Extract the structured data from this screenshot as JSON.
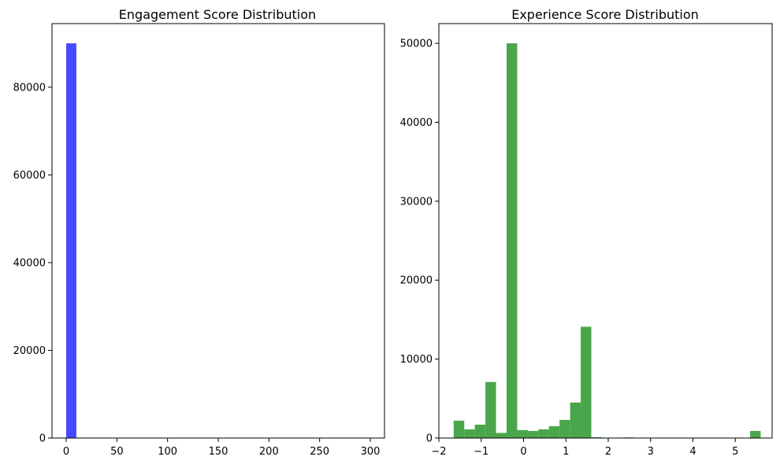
{
  "chart_data": [
    {
      "type": "bar",
      "subtype": "histogram",
      "title": "Engagement Score Distribution",
      "xlabel": "",
      "ylabel": "",
      "xlim": [
        -14,
        314
      ],
      "ylim": [
        0,
        94500
      ],
      "xticks": [
        0,
        50,
        100,
        150,
        200,
        250,
        300
      ],
      "xtick_labels": [
        "0",
        "50",
        "100",
        "150",
        "200",
        "250",
        "300"
      ],
      "yticks": [
        0,
        20000,
        40000,
        60000,
        80000
      ],
      "ytick_labels": [
        "0",
        "20000",
        "40000",
        "60000",
        "80000"
      ],
      "color": "#4848ff",
      "grid": false,
      "bins": [
        {
          "x0": 0,
          "x1": 10,
          "count": 90000
        }
      ]
    },
    {
      "type": "bar",
      "subtype": "histogram",
      "title": "Experience Score Distribution",
      "xlabel": "",
      "ylabel": "",
      "xlim": [
        -2.0,
        5.87
      ],
      "ylim": [
        0,
        52500
      ],
      "xticks": [
        -2,
        -1,
        0,
        1,
        2,
        3,
        4,
        5
      ],
      "xtick_labels": [
        "−2",
        "−1",
        "0",
        "1",
        "2",
        "3",
        "4",
        "5"
      ],
      "yticks": [
        0,
        10000,
        20000,
        30000,
        40000,
        50000
      ],
      "ytick_labels": [
        "0",
        "10000",
        "20000",
        "30000",
        "40000",
        "50000"
      ],
      "color": "#4aa64a",
      "grid": false,
      "bins": [
        {
          "x0": -1.65,
          "x1": -1.4,
          "count": 2200
        },
        {
          "x0": -1.4,
          "x1": -1.15,
          "count": 1100
        },
        {
          "x0": -1.15,
          "x1": -0.9,
          "count": 1700
        },
        {
          "x0": -0.9,
          "x1": -0.65,
          "count": 7100
        },
        {
          "x0": -0.65,
          "x1": -0.4,
          "count": 650
        },
        {
          "x0": -0.4,
          "x1": -0.15,
          "count": 50000
        },
        {
          "x0": -0.15,
          "x1": 0.1,
          "count": 1000
        },
        {
          "x0": 0.1,
          "x1": 0.35,
          "count": 900
        },
        {
          "x0": 0.35,
          "x1": 0.6,
          "count": 1100
        },
        {
          "x0": 0.6,
          "x1": 0.85,
          "count": 1500
        },
        {
          "x0": 0.85,
          "x1": 1.1,
          "count": 2300
        },
        {
          "x0": 1.1,
          "x1": 1.35,
          "count": 4500
        },
        {
          "x0": 1.35,
          "x1": 1.6,
          "count": 14100
        },
        {
          "x0": 1.6,
          "x1": 1.85,
          "count": 100
        },
        {
          "x0": 1.85,
          "x1": 2.1,
          "count": 30
        },
        {
          "x0": 2.1,
          "x1": 2.35,
          "count": 20
        },
        {
          "x0": 2.35,
          "x1": 2.6,
          "count": 80
        },
        {
          "x0": 5.35,
          "x1": 5.6,
          "count": 900
        }
      ]
    }
  ]
}
